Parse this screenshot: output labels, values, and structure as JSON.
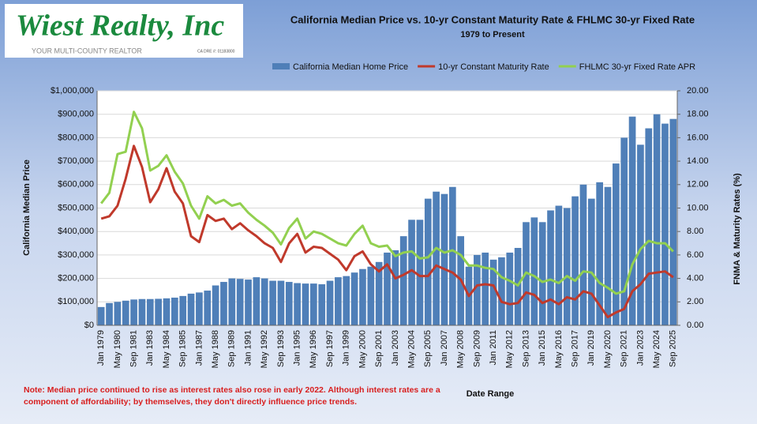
{
  "logo": {
    "name": "Wiest Realty, Inc",
    "tagline": "YOUR MULTI-COUNTY REALTOR",
    "license": "CA DRE #: 01183800"
  },
  "chart_data": {
    "type": "bar",
    "title": "California Median Price vs. 10-yr Constant Maturity Rate & FHLMC 30-yr Fixed Rate",
    "subtitle": "1979 to Present",
    "x_label": "Date Range",
    "y_label": "California Median Price",
    "y2_label": "FNMA & Maturity Rates (%)",
    "note": "Note: Median price continued to rise as interest rates also rose in early 2022. Although interest rates are a component of affordability; by themselves, they don't directly influence price trends.",
    "categories": [
      "Jan 1979",
      null,
      "May 1980",
      null,
      "Sep 1981",
      null,
      "Jan 1983",
      null,
      "May 1984",
      null,
      "Sep 1985",
      null,
      "Jan 1987",
      null,
      "May 1988",
      null,
      "Sep 1989",
      null,
      "Jan 1991",
      null,
      "May 1992",
      null,
      "Sep 1993",
      null,
      "Jan 1995",
      null,
      "May 1996",
      null,
      "Sep 1997",
      null,
      "Jan 1999",
      null,
      "May 2000",
      null,
      "Sep 2001",
      null,
      "Jan 2003",
      null,
      "May 2004",
      null,
      "Sep 2005",
      null,
      "Jan 2007",
      null,
      "May 2008",
      null,
      "Sep 2009",
      null,
      "Jan 2011",
      null,
      "May 2012",
      null,
      "Sep 2013",
      null,
      "Jan 2015",
      null,
      "May 2016",
      null,
      "Sep 2017",
      null,
      "Jan 2019",
      null,
      "May 2020",
      null,
      "Sep 2021",
      null,
      "Jan 2023",
      null,
      "May 2024",
      null,
      "Sep 2025"
    ],
    "series": [
      {
        "name": "California Median Home Price",
        "type": "bar",
        "color": "#4f7fb8",
        "values": [
          78000,
          95000,
          100000,
          105000,
          110000,
          112000,
          112000,
          113000,
          115000,
          118000,
          125000,
          135000,
          140000,
          148000,
          170000,
          185000,
          200000,
          198000,
          195000,
          205000,
          200000,
          190000,
          190000,
          185000,
          180000,
          178000,
          178000,
          175000,
          190000,
          205000,
          210000,
          225000,
          240000,
          250000,
          270000,
          310000,
          320000,
          380000,
          450000,
          450000,
          540000,
          570000,
          560000,
          590000,
          380000,
          250000,
          300000,
          310000,
          280000,
          290000,
          310000,
          330000,
          440000,
          460000,
          440000,
          490000,
          510000,
          500000,
          550000,
          600000,
          540000,
          610000,
          590000,
          690000,
          800000,
          890000,
          770000,
          840000,
          900000,
          860000,
          880000
        ]
      },
      {
        "name": "10-yr Constant Maturity Rate",
        "type": "line",
        "axis": "y2",
        "color": "#c0392b",
        "values": [
          9.1,
          9.3,
          10.2,
          12.5,
          15.3,
          13.5,
          10.5,
          11.6,
          13.4,
          11.4,
          10.4,
          7.6,
          7.1,
          9.4,
          8.9,
          9.1,
          8.2,
          8.7,
          8.1,
          7.6,
          7.0,
          6.6,
          5.4,
          7.0,
          7.8,
          6.2,
          6.7,
          6.6,
          6.1,
          5.6,
          4.7,
          5.9,
          6.3,
          5.2,
          4.6,
          5.2,
          4.0,
          4.3,
          4.7,
          4.2,
          4.2,
          5.1,
          4.8,
          4.5,
          3.9,
          2.5,
          3.4,
          3.5,
          3.4,
          2.0,
          1.8,
          1.9,
          2.8,
          2.6,
          1.9,
          2.2,
          1.8,
          2.4,
          2.2,
          2.9,
          2.7,
          1.7,
          0.7,
          1.1,
          1.4,
          2.9,
          3.5,
          4.4,
          4.5,
          4.6,
          4.1
        ]
      },
      {
        "name": "FHLMC 30-yr Fixed Rate APR",
        "type": "line",
        "axis": "y2",
        "color": "#92d050",
        "values": [
          10.4,
          11.3,
          14.6,
          14.8,
          18.2,
          16.8,
          13.2,
          13.6,
          14.5,
          13.1,
          12.1,
          10.2,
          9.1,
          11.0,
          10.4,
          10.7,
          10.2,
          10.4,
          9.6,
          9.0,
          8.5,
          7.9,
          6.9,
          8.3,
          9.1,
          7.4,
          8.0,
          7.8,
          7.4,
          7.0,
          6.8,
          7.8,
          8.5,
          7.0,
          6.7,
          6.8,
          5.9,
          6.2,
          6.3,
          5.7,
          5.8,
          6.6,
          6.2,
          6.4,
          6.0,
          5.1,
          5.1,
          4.9,
          4.8,
          4.1,
          3.8,
          3.4,
          4.5,
          4.2,
          3.7,
          3.9,
          3.6,
          4.2,
          3.8,
          4.6,
          4.5,
          3.6,
          3.2,
          2.7,
          2.9,
          5.2,
          6.5,
          7.2,
          7.0,
          7.0,
          6.3
        ]
      }
    ],
    "ylim": [
      0,
      1000000
    ],
    "yticks": [
      {
        "value": 0,
        "label": "$0"
      },
      {
        "value": 100000,
        "label": "$100,000"
      },
      {
        "value": 200000,
        "label": "$200,000"
      },
      {
        "value": 300000,
        "label": "$300,000"
      },
      {
        "value": 400000,
        "label": "$400,000"
      },
      {
        "value": 500000,
        "label": "$500,000"
      },
      {
        "value": 600000,
        "label": "$600,000"
      },
      {
        "value": 700000,
        "label": "$700,000"
      },
      {
        "value": 800000,
        "label": "$800,000"
      },
      {
        "value": 900000,
        "label": "$900,000"
      },
      {
        "value": 1000000,
        "label": "$1,000,000"
      }
    ],
    "y2lim": [
      0,
      20
    ],
    "y2ticks": [
      {
        "value": 0,
        "label": "0.00"
      },
      {
        "value": 2,
        "label": "2.00"
      },
      {
        "value": 4,
        "label": "4.00"
      },
      {
        "value": 6,
        "label": "6.00"
      },
      {
        "value": 8,
        "label": "8.00"
      },
      {
        "value": 10,
        "label": "10.00"
      },
      {
        "value": 12,
        "label": "12.00"
      },
      {
        "value": 14,
        "label": "14.00"
      },
      {
        "value": 16,
        "label": "16.00"
      },
      {
        "value": 18,
        "label": "18.00"
      },
      {
        "value": 20,
        "label": "20.00"
      }
    ],
    "grid": true
  }
}
